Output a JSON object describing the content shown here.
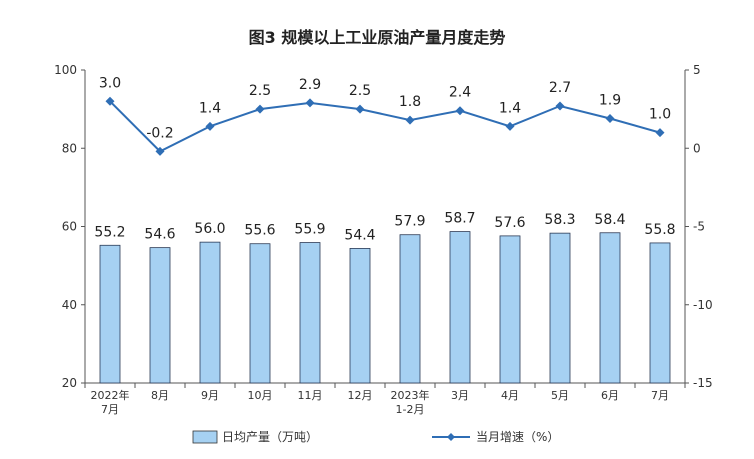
{
  "chart_data": {
    "type": "bar",
    "title": "图3  规模以上工业原油产量月度走势",
    "categories": [
      [
        "2022年",
        "7月"
      ],
      [
        "8月"
      ],
      [
        "9月"
      ],
      [
        "10月"
      ],
      [
        "11月"
      ],
      [
        "12月"
      ],
      [
        "2023年",
        "1-2月"
      ],
      [
        "3月"
      ],
      [
        "4月"
      ],
      [
        "5月"
      ],
      [
        "6月"
      ],
      [
        "7月"
      ]
    ],
    "series": [
      {
        "name": "日均产量（万吨）",
        "type": "bar",
        "axis": "left",
        "color": "#a6d1f2",
        "values": [
          55.2,
          54.6,
          56.0,
          55.6,
          55.9,
          54.4,
          57.9,
          58.7,
          57.6,
          58.3,
          58.4,
          55.8
        ],
        "labels": [
          "55.2",
          "54.6",
          "56.0",
          "55.6",
          "55.9",
          "54.4",
          "57.9",
          "58.7",
          "57.6",
          "58.3",
          "58.4",
          "55.8"
        ]
      },
      {
        "name": "当月增速（%）",
        "type": "line",
        "axis": "right",
        "color": "#2f6eb5",
        "values": [
          3.0,
          -0.2,
          1.4,
          2.5,
          2.9,
          2.5,
          1.8,
          2.4,
          1.4,
          2.7,
          1.9,
          1.0
        ],
        "labels": [
          "3.0",
          "-0.2",
          "1.4",
          "2.5",
          "2.9",
          "2.5",
          "1.8",
          "2.4",
          "1.4",
          "2.7",
          "1.9",
          "1.0"
        ]
      }
    ],
    "y_left": {
      "min": 20,
      "max": 100,
      "ticks": [
        "20",
        "40",
        "60",
        "80",
        "100"
      ]
    },
    "y_right": {
      "min": -15,
      "max": 5,
      "ticks": [
        "-15",
        "-10",
        "-5",
        "0",
        "5"
      ]
    },
    "grid": false,
    "legend_position": "bottom"
  }
}
